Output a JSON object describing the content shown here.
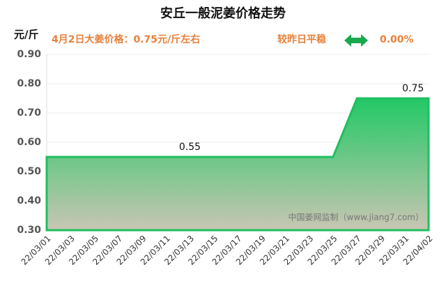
{
  "chart_data": {
    "type": "area",
    "title": "安丘一般泥姜价格走势",
    "y_unit": "元/斤",
    "headline": "4月2日大姜价格：0.75元/斤左右",
    "change_text": "较昨日平稳",
    "change_value": "0.00%",
    "watermark": "中国姜网监制（www.jiang7.com）",
    "categories": [
      "22/03/01",
      "22/03/03",
      "22/03/05",
      "22/03/07",
      "22/03/09",
      "22/03/11",
      "22/03/13",
      "22/03/15",
      "22/03/17",
      "22/03/19",
      "22/03/21",
      "22/03/23",
      "22/03/25",
      "22/03/27",
      "22/03/29",
      "22/03/31",
      "22/04/02"
    ],
    "values": [
      0.55,
      0.55,
      0.55,
      0.55,
      0.55,
      0.55,
      0.55,
      0.55,
      0.55,
      0.55,
      0.55,
      0.55,
      0.55,
      0.75,
      0.75,
      0.75,
      0.75
    ],
    "value_labels": [
      null,
      null,
      null,
      null,
      null,
      null,
      "0.55",
      null,
      null,
      null,
      null,
      null,
      null,
      null,
      null,
      "0.75",
      null
    ],
    "color": "#1fbf5f",
    "ylim": [
      0.3,
      0.9
    ],
    "yticks": [
      {
        "value": 0.3,
        "label": "0.30"
      },
      {
        "value": 0.4,
        "label": "0.40"
      },
      {
        "value": 0.5,
        "label": "0.50"
      },
      {
        "value": 0.6,
        "label": "0.60"
      },
      {
        "value": 0.7,
        "label": "0.70"
      },
      {
        "value": 0.8,
        "label": "0.80"
      },
      {
        "value": 0.9,
        "label": "0.90"
      }
    ],
    "grid": true
  }
}
